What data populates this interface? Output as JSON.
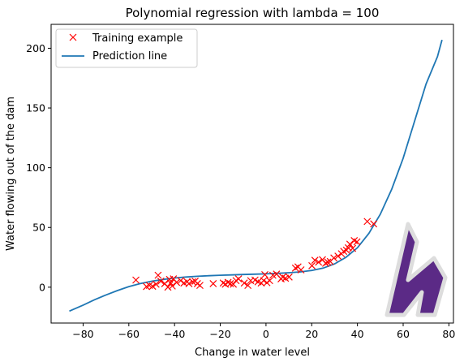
{
  "chart_data": {
    "type": "scatter",
    "title": "Polynomial regression with lambda = 100",
    "xlabel": "Change in water level",
    "ylabel": "Water flowing out of the dam",
    "xlim": [
      -94,
      82
    ],
    "ylim": [
      -30,
      220
    ],
    "xticks": [
      -80,
      -60,
      -40,
      -20,
      0,
      20,
      40,
      60,
      80
    ],
    "yticks": [
      0,
      50,
      100,
      150,
      200
    ],
    "grid": false,
    "legend_position": "top-left",
    "colors": {
      "training": "#ff0000",
      "prediction": "#1f77b4",
      "logo": "#5b2a86"
    },
    "series": [
      {
        "name": "Training example",
        "kind": "scatter",
        "marker": "x",
        "points": [
          [
            -56.9,
            6.0
          ],
          [
            -52.3,
            0.5
          ],
          [
            -51.0,
            1.5
          ],
          [
            -49.6,
            0.8
          ],
          [
            -48.1,
            2.5
          ],
          [
            -47.2,
            10.0
          ],
          [
            -46.0,
            5.0
          ],
          [
            -44.3,
            3.0
          ],
          [
            -42.9,
            0.0
          ],
          [
            -42.2,
            6.5
          ],
          [
            -41.7,
            3.5
          ],
          [
            -41.0,
            1.0
          ],
          [
            -40.5,
            7.0
          ],
          [
            -39.1,
            4.0
          ],
          [
            -37.3,
            5.5
          ],
          [
            -35.9,
            3.5
          ],
          [
            -34.5,
            4.5
          ],
          [
            -33.7,
            3.0
          ],
          [
            -32.1,
            4.5
          ],
          [
            -31.0,
            5.0
          ],
          [
            -30.0,
            3.0
          ],
          [
            -28.9,
            1.5
          ],
          [
            -23.1,
            3.0
          ],
          [
            -18.7,
            3.5
          ],
          [
            -17.8,
            2.5
          ],
          [
            -16.6,
            4.0
          ],
          [
            -15.6,
            3.0
          ],
          [
            -14.3,
            2.5
          ],
          [
            -13.1,
            5.5
          ],
          [
            -12.0,
            7.0
          ],
          [
            -9.5,
            3.5
          ],
          [
            -7.9,
            1.5
          ],
          [
            -6.7,
            5.5
          ],
          [
            -4.8,
            6.0
          ],
          [
            -3.5,
            4.5
          ],
          [
            -2.1,
            3.5
          ],
          [
            -1.0,
            5.5
          ],
          [
            -0.5,
            10.5
          ],
          [
            0.4,
            3.8
          ],
          [
            1.6,
            5.5
          ],
          [
            3.0,
            10.0
          ],
          [
            4.6,
            11.0
          ],
          [
            6.6,
            7.0
          ],
          [
            7.3,
            8.5
          ],
          [
            8.5,
            7.5
          ],
          [
            10.1,
            8.5
          ],
          [
            12.9,
            16.0
          ],
          [
            14.0,
            17.0
          ],
          [
            15.3,
            14.5
          ],
          [
            20.1,
            18.0
          ],
          [
            21.4,
            22.5
          ],
          [
            23.0,
            21.0
          ],
          [
            24.7,
            23.0
          ],
          [
            26.1,
            20.0
          ],
          [
            27.0,
            21.0
          ],
          [
            28.1,
            21.5
          ],
          [
            29.7,
            24.5
          ],
          [
            31.5,
            26.0
          ],
          [
            33.0,
            28.0
          ],
          [
            34.0,
            30.0
          ],
          [
            35.2,
            31.0
          ],
          [
            36.0,
            33.0
          ],
          [
            36.7,
            36.0
          ],
          [
            37.9,
            32.5
          ],
          [
            38.6,
            39.0
          ],
          [
            39.8,
            38.0
          ],
          [
            44.3,
            55.0
          ],
          [
            47.1,
            53.0
          ]
        ]
      },
      {
        "name": "Prediction line",
        "kind": "line",
        "points": [
          [
            -86,
            -20
          ],
          [
            -80,
            -15
          ],
          [
            -75,
            -10.5
          ],
          [
            -70,
            -6.5
          ],
          [
            -65,
            -2.8
          ],
          [
            -60,
            0.5
          ],
          [
            -55,
            3.0
          ],
          [
            -50,
            5.0
          ],
          [
            -45,
            6.5
          ],
          [
            -40,
            7.7
          ],
          [
            -35,
            8.5
          ],
          [
            -30,
            9.1
          ],
          [
            -25,
            9.6
          ],
          [
            -20,
            10.0
          ],
          [
            -15,
            10.3
          ],
          [
            -10,
            10.6
          ],
          [
            -5,
            10.9
          ],
          [
            0,
            11.2
          ],
          [
            5,
            11.6
          ],
          [
            10,
            12.1
          ],
          [
            15,
            12.8
          ],
          [
            20,
            14.0
          ],
          [
            25,
            16.0
          ],
          [
            30,
            19.5
          ],
          [
            35,
            25.0
          ],
          [
            40,
            33.0
          ],
          [
            45,
            45.0
          ],
          [
            50,
            61.0
          ],
          [
            55,
            82.0
          ],
          [
            60,
            108.0
          ],
          [
            65,
            139.0
          ],
          [
            70,
            170.0
          ],
          [
            75,
            193.0
          ],
          [
            77,
            207.0
          ]
        ]
      }
    ]
  }
}
